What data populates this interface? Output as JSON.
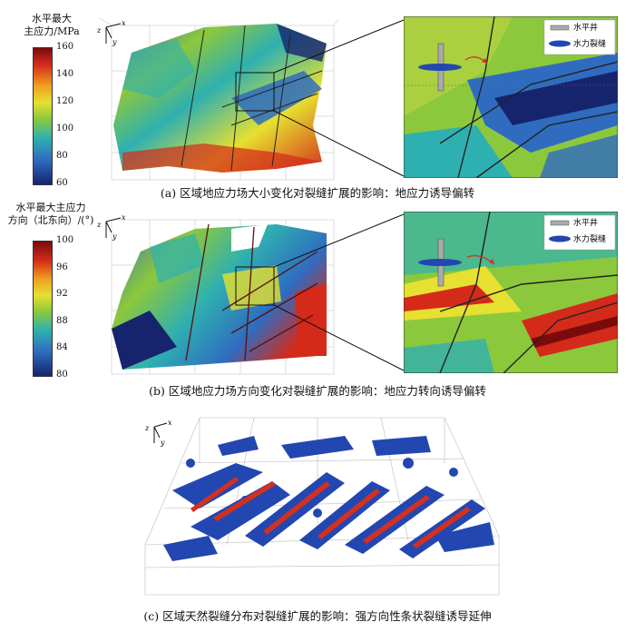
{
  "panel_a": {
    "legend_title_line1": "水平最大",
    "legend_title_line2": "主应力/MPa",
    "ticks": [
      "160",
      "140",
      "120",
      "100",
      "80",
      "60"
    ],
    "caption": "(a) 区域地应力场大小变化对裂缝扩展的影响：地应力诱导偏转",
    "axis_x": "x",
    "axis_y": "y",
    "axis_z": "z",
    "key_well": "水平井",
    "key_fracture": "水力裂缝"
  },
  "panel_b": {
    "legend_title_line1": "水平最大主应力",
    "legend_title_line2": "方向（北东向）/(°)",
    "ticks": [
      "100",
      "96",
      "92",
      "88",
      "84",
      "80"
    ],
    "caption": "(b) 区域地应力场方向变化对裂缝扩展的影响：地应力转向诱导偏转",
    "axis_x": "x",
    "axis_y": "y",
    "axis_z": "z",
    "key_well": "水平井",
    "key_fracture": "水力裂缝"
  },
  "panel_c": {
    "caption": "(c) 区域天然裂缝分布对裂缝扩展的影响：强方向性条状裂缝诱导延伸",
    "axis_x": "x",
    "axis_y": "y",
    "axis_z": "z"
  },
  "colors": {
    "scale": [
      "#7a0b0b",
      "#d42a1a",
      "#f0a020",
      "#e6e030",
      "#8cc83c",
      "#2fb0b0",
      "#2f6cc0",
      "#16246e"
    ],
    "fracture_blue": "#2347b0",
    "arrow_red": "#d43020"
  }
}
